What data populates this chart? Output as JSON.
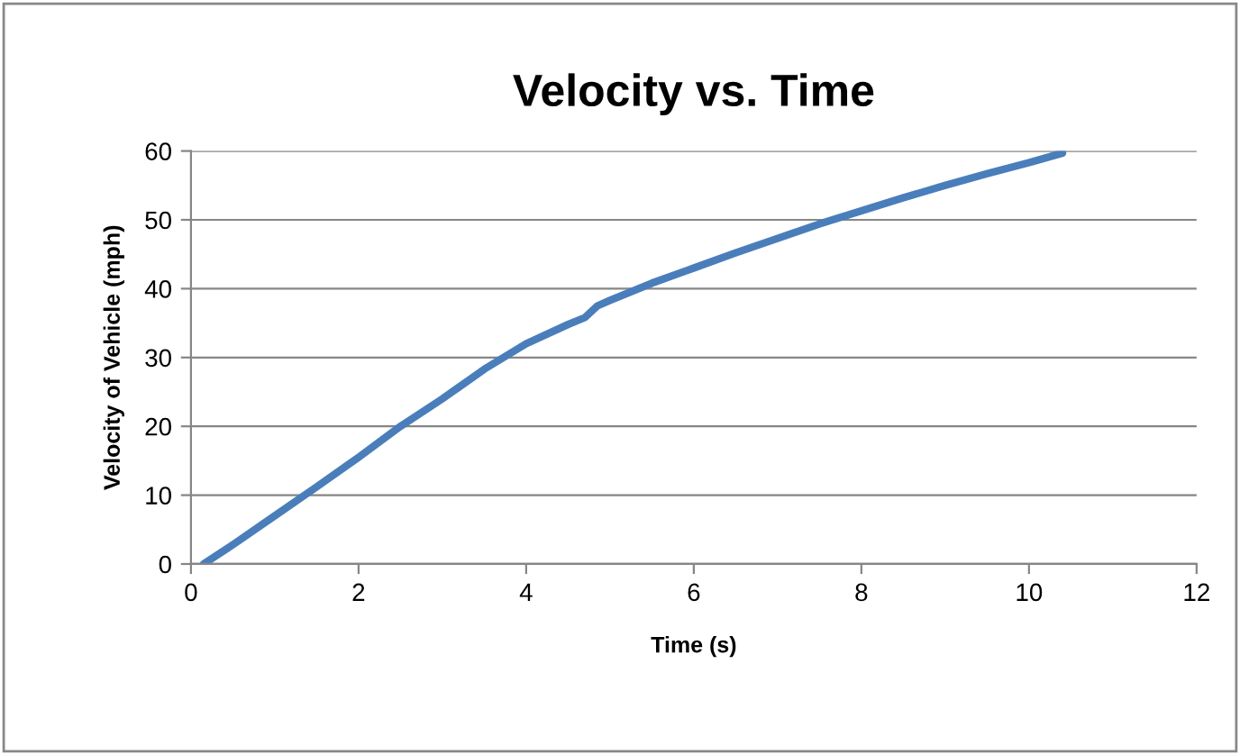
{
  "chart_data": {
    "type": "line",
    "title": "Velocity vs. Time",
    "xlabel": "Time (s)",
    "ylabel": "Velocity of Vehicle (mph)",
    "series": [
      {
        "color": "#4a7ebb",
        "x": [
          0.15,
          0.5,
          1,
          1.5,
          2,
          2.5,
          3,
          3.5,
          4,
          4.5,
          4.7,
          4.85,
          5,
          5.5,
          6,
          6.5,
          7,
          7.5,
          8,
          8.5,
          9,
          9.5,
          10,
          10.4
        ],
        "values": [
          0,
          2.8,
          7,
          11.2,
          15.5,
          20,
          24,
          28.3,
          32,
          34.8,
          35.8,
          37.5,
          38.3,
          40.8,
          43,
          45.2,
          47.3,
          49.4,
          51.3,
          53.2,
          55,
          56.7,
          58.3,
          59.7
        ]
      }
    ],
    "xlim": [
      0,
      12
    ],
    "xticks": [
      0,
      2,
      4,
      6,
      8,
      10,
      12
    ],
    "ylim": [
      0,
      60
    ],
    "yticks": [
      0,
      10,
      20,
      30,
      40,
      50,
      60
    ],
    "grid": "y",
    "marker": "none",
    "line_style": "solid",
    "legend": false
  }
}
